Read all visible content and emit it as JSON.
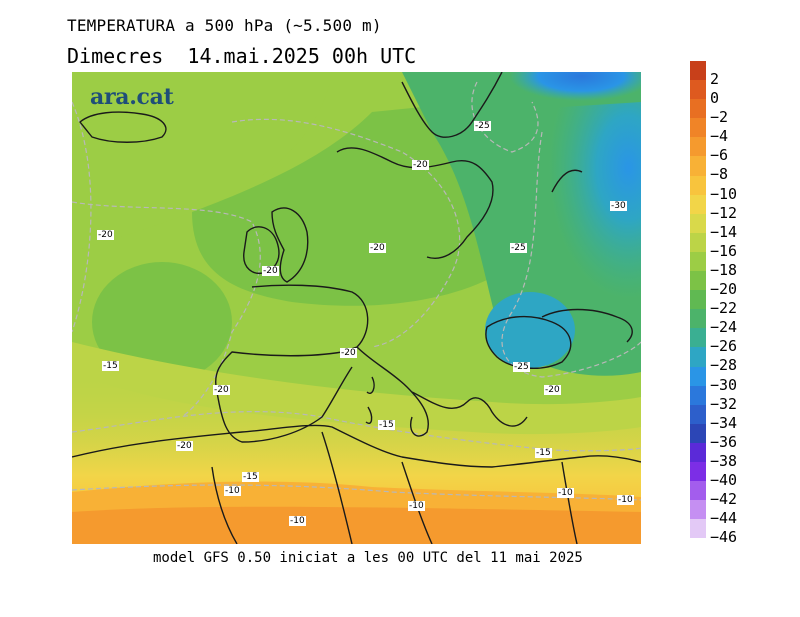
{
  "header": {
    "title": "TEMPERATURA a 500 hPa (~5.500 m)",
    "subtitle": "Dimecres  14.mai.2025 00h UTC"
  },
  "brand": {
    "logo_text": "ara.cat"
  },
  "footer": {
    "note": "model GFS 0.50 iniciat a les 00 UTC del 11 mai 2025"
  },
  "map": {
    "contour_labels": [
      "-25",
      "-20",
      "-30",
      "-20",
      "-25",
      "-20",
      "-20",
      "-20",
      "-15",
      "-25",
      "-20",
      "-20",
      "-15",
      "-20",
      "-15",
      "-15",
      "-10",
      "-10",
      "-10",
      "-10",
      "-10"
    ]
  },
  "legend": {
    "labels": [
      "2",
      "0",
      "−2",
      "−4",
      "−6",
      "−8",
      "−10",
      "−12",
      "−14",
      "−16",
      "−18",
      "−20",
      "−22",
      "−24",
      "−26",
      "−28",
      "−30",
      "−32",
      "−34",
      "−36",
      "−38",
      "−40",
      "−42",
      "−44",
      "−46"
    ],
    "colors": [
      "#c8401a",
      "#de5a1f",
      "#e86f22",
      "#f08427",
      "#f59a2e",
      "#f8b136",
      "#f8c43d",
      "#f2d548",
      "#d9d94a",
      "#bcd447",
      "#9ccd45",
      "#7cc246",
      "#60b952",
      "#4cb36a",
      "#3aaf92",
      "#2ea6c4",
      "#2a95e6",
      "#2b78dc",
      "#2d5fcb",
      "#2c46b6",
      "#5b2ad8",
      "#7c2ee6",
      "#a35ded",
      "#c58ff2",
      "#e3c9f6"
    ]
  }
}
